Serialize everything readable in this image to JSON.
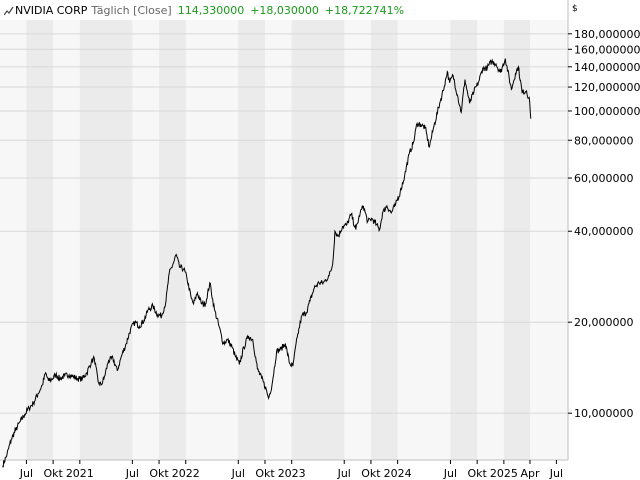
{
  "header": {
    "symbol": "NVIDIA CORP",
    "interval": "Täglich [Close]",
    "last": "114,330000",
    "change": "+18,030000",
    "change_pct": "+18,722741%",
    "currency": "$",
    "change_color": "#1a9a1a"
  },
  "chart_data": {
    "type": "line",
    "y_scale": "log",
    "ylim": [
      7,
      200
    ],
    "y_ticks": [
      {
        "value": 10,
        "label": "10,000000"
      },
      {
        "value": 20,
        "label": "20,000000"
      },
      {
        "value": 40,
        "label": "40,000000"
      },
      {
        "value": 60,
        "label": "60,000000"
      },
      {
        "value": 80,
        "label": "80,000000"
      },
      {
        "value": 100,
        "label": "100,000000"
      },
      {
        "value": 120,
        "label": "120,000000"
      },
      {
        "value": 140,
        "label": "140,000000"
      },
      {
        "value": 160,
        "label": "160,000000"
      },
      {
        "value": 180,
        "label": "180,000000"
      }
    ],
    "xlim": [
      "2020-04-01",
      "2025-08-10"
    ],
    "x_ticks": [
      {
        "date": "2020-07-01",
        "label": "Jul"
      },
      {
        "date": "2020-10-01",
        "label": "Okt"
      },
      {
        "date": "2021-01-01",
        "label": "2021"
      },
      {
        "date": "2021-07-01",
        "label": "Jul"
      },
      {
        "date": "2021-10-01",
        "label": "Okt"
      },
      {
        "date": "2022-01-01",
        "label": "2022"
      },
      {
        "date": "2022-07-01",
        "label": "Jul"
      },
      {
        "date": "2022-10-01",
        "label": "Okt"
      },
      {
        "date": "2023-01-01",
        "label": "2023"
      },
      {
        "date": "2023-07-01",
        "label": "Jul"
      },
      {
        "date": "2023-10-01",
        "label": "Okt"
      },
      {
        "date": "2024-01-01",
        "label": "2024"
      },
      {
        "date": "2024-07-01",
        "label": "Jul"
      },
      {
        "date": "2024-10-01",
        "label": "Okt"
      },
      {
        "date": "2025-01-01",
        "label": "2025"
      },
      {
        "date": "2025-04-01",
        "label": "Apr"
      },
      {
        "date": "2025-07-01",
        "label": "Jul"
      }
    ],
    "grid": true,
    "line_color": "#000000",
    "series": [
      {
        "name": "NVIDIA CORP",
        "points": [
          [
            "2020-04-10",
            6.7
          ],
          [
            "2020-04-25",
            7.3
          ],
          [
            "2020-05-10",
            8.2
          ],
          [
            "2020-05-25",
            8.8
          ],
          [
            "2020-06-10",
            9.4
          ],
          [
            "2020-06-25",
            9.9
          ],
          [
            "2020-07-10",
            10.4
          ],
          [
            "2020-07-25",
            10.8
          ],
          [
            "2020-08-10",
            11.6
          ],
          [
            "2020-08-25",
            12.4
          ],
          [
            "2020-09-05",
            13.6
          ],
          [
            "2020-09-15",
            12.8
          ],
          [
            "2020-09-25",
            12.9
          ],
          [
            "2020-10-10",
            13.4
          ],
          [
            "2020-10-25",
            13.0
          ],
          [
            "2020-11-10",
            13.3
          ],
          [
            "2020-11-25",
            13.4
          ],
          [
            "2020-12-10",
            13.2
          ],
          [
            "2020-12-25",
            13.0
          ],
          [
            "2021-01-10",
            13.0
          ],
          [
            "2021-01-25",
            13.6
          ],
          [
            "2021-02-10",
            14.8
          ],
          [
            "2021-02-20",
            15.2
          ],
          [
            "2021-03-05",
            12.7
          ],
          [
            "2021-03-15",
            12.4
          ],
          [
            "2021-03-25",
            13.0
          ],
          [
            "2021-04-10",
            14.9
          ],
          [
            "2021-04-25",
            15.2
          ],
          [
            "2021-05-10",
            13.8
          ],
          [
            "2021-05-25",
            15.5
          ],
          [
            "2021-06-10",
            17.0
          ],
          [
            "2021-06-25",
            19.0
          ],
          [
            "2021-07-10",
            20.0
          ],
          [
            "2021-07-25",
            19.4
          ],
          [
            "2021-08-10",
            20.3
          ],
          [
            "2021-08-25",
            22.0
          ],
          [
            "2021-09-10",
            22.6
          ],
          [
            "2021-09-25",
            21.2
          ],
          [
            "2021-10-10",
            21.0
          ],
          [
            "2021-10-25",
            23.5
          ],
          [
            "2021-11-05",
            29.0
          ],
          [
            "2021-11-20",
            31.5
          ],
          [
            "2021-11-29",
            33.5
          ],
          [
            "2021-12-10",
            30.5
          ],
          [
            "2021-12-25",
            30.0
          ],
          [
            "2022-01-05",
            28.0
          ],
          [
            "2022-01-20",
            24.0
          ],
          [
            "2022-01-28",
            23.0
          ],
          [
            "2022-02-10",
            25.0
          ],
          [
            "2022-02-25",
            23.0
          ],
          [
            "2022-03-10",
            23.0
          ],
          [
            "2022-03-25",
            27.0
          ],
          [
            "2022-04-10",
            22.0
          ],
          [
            "2022-04-25",
            19.5
          ],
          [
            "2022-05-10",
            17.0
          ],
          [
            "2022-05-25",
            17.5
          ],
          [
            "2022-06-10",
            16.5
          ],
          [
            "2022-06-20",
            15.5
          ],
          [
            "2022-07-05",
            14.5
          ],
          [
            "2022-07-20",
            16.5
          ],
          [
            "2022-08-05",
            18.0
          ],
          [
            "2022-08-20",
            17.5
          ],
          [
            "2022-09-05",
            14.0
          ],
          [
            "2022-09-20",
            13.0
          ],
          [
            "2022-10-05",
            12.0
          ],
          [
            "2022-10-13",
            11.2
          ],
          [
            "2022-10-25",
            12.4
          ],
          [
            "2022-11-10",
            16.0
          ],
          [
            "2022-11-25",
            16.3
          ],
          [
            "2022-12-10",
            17.0
          ],
          [
            "2022-12-25",
            14.6
          ],
          [
            "2023-01-05",
            14.3
          ],
          [
            "2023-01-20",
            17.8
          ],
          [
            "2023-02-05",
            21.0
          ],
          [
            "2023-02-20",
            21.5
          ],
          [
            "2023-03-05",
            23.5
          ],
          [
            "2023-03-20",
            26.0
          ],
          [
            "2023-04-05",
            27.0
          ],
          [
            "2023-04-20",
            27.0
          ],
          [
            "2023-05-10",
            28.5
          ],
          [
            "2023-05-22",
            31.0
          ],
          [
            "2023-05-30",
            40.0
          ],
          [
            "2023-06-10",
            38.5
          ],
          [
            "2023-06-25",
            41.5
          ],
          [
            "2023-07-10",
            42.0
          ],
          [
            "2023-07-25",
            45.5
          ],
          [
            "2023-08-10",
            40.5
          ],
          [
            "2023-08-25",
            46.0
          ],
          [
            "2023-09-05",
            48.5
          ],
          [
            "2023-09-20",
            43.0
          ],
          [
            "2023-10-05",
            44.0
          ],
          [
            "2023-10-20",
            42.0
          ],
          [
            "2023-10-31",
            40.5
          ],
          [
            "2023-11-10",
            46.0
          ],
          [
            "2023-11-25",
            48.5
          ],
          [
            "2023-12-10",
            46.0
          ],
          [
            "2023-12-25",
            49.0
          ],
          [
            "2024-01-10",
            54.0
          ],
          [
            "2024-01-25",
            61.0
          ],
          [
            "2024-02-10",
            72.0
          ],
          [
            "2024-02-25",
            79.0
          ],
          [
            "2024-03-08",
            91.0
          ],
          [
            "2024-03-20",
            90.0
          ],
          [
            "2024-04-05",
            88.0
          ],
          [
            "2024-04-19",
            76.0
          ],
          [
            "2024-05-05",
            89.0
          ],
          [
            "2024-05-25",
            106.0
          ],
          [
            "2024-06-10",
            121.0
          ],
          [
            "2024-06-20",
            135.0
          ],
          [
            "2024-06-28",
            124.0
          ],
          [
            "2024-07-10",
            131.0
          ],
          [
            "2024-07-25",
            113.0
          ],
          [
            "2024-08-07",
            98.9
          ],
          [
            "2024-08-20",
            127.0
          ],
          [
            "2024-09-05",
            106.0
          ],
          [
            "2024-09-20",
            116.0
          ],
          [
            "2024-10-05",
            124.0
          ],
          [
            "2024-10-20",
            138.0
          ],
          [
            "2024-11-05",
            139.0
          ],
          [
            "2024-11-20",
            146.0
          ],
          [
            "2024-12-05",
            143.0
          ],
          [
            "2024-12-20",
            134.0
          ],
          [
            "2025-01-06",
            149.0
          ],
          [
            "2025-01-27",
            118.0
          ],
          [
            "2025-02-10",
            133.0
          ],
          [
            "2025-02-20",
            140.0
          ],
          [
            "2025-03-05",
            115.0
          ],
          [
            "2025-03-20",
            117.0
          ],
          [
            "2025-03-31",
            107.0
          ],
          [
            "2025-04-04",
            94.3
          ]
        ]
      }
    ]
  }
}
